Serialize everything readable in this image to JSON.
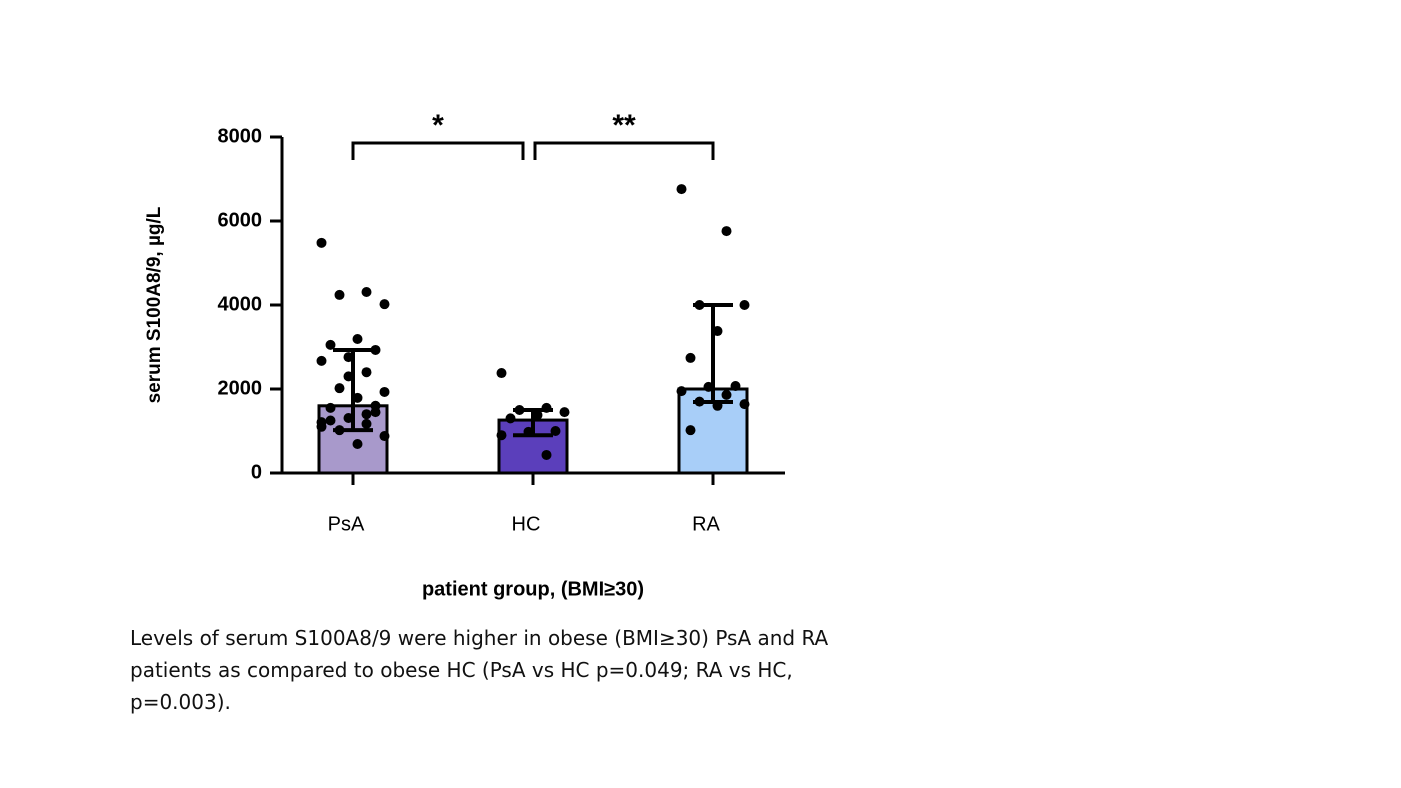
{
  "chart_data": {
    "type": "bar",
    "y_label": "serum S100A8/9, µg/L",
    "x_label": "patient group, (BMI≥30)",
    "categories": [
      "PsA",
      "HC",
      "RA"
    ],
    "colors": [
      "#a899cb",
      "#5b3fbb",
      "#a8cef8"
    ],
    "values": [
      1600,
      1260,
      2000
    ],
    "error_lower": [
      1020,
      900,
      1690
    ],
    "error_upper": [
      2930,
      1500,
      4000
    ],
    "points": [
      [
        5480,
        4310,
        4240,
        4020,
        3190,
        3050,
        2930,
        2760,
        2670,
        2400,
        2020,
        1930,
        1790,
        1550,
        1450,
        1310,
        1210,
        1170,
        1020,
        880,
        690,
        1250,
        1600,
        2300,
        1100,
        1400
      ],
      [
        2380,
        1550,
        1500,
        1450,
        1380,
        1300,
        1000,
        980,
        900,
        430
      ],
      [
        6760,
        5760,
        4000,
        4000,
        3380,
        2740,
        2070,
        2050,
        1950,
        1860,
        1700,
        1640,
        1600,
        1020
      ]
    ],
    "annotations": [
      "*",
      "**"
    ],
    "ylim": [
      0,
      8000
    ],
    "yticks": [
      0,
      2000,
      4000,
      6000,
      8000
    ]
  },
  "caption": "Levels of serum S100A8/9 were higher in obese (BMI≥30) PsA and RA patients as compared to obese HC (PsA vs HC p=0.049; RA vs HC, p=0.003)."
}
